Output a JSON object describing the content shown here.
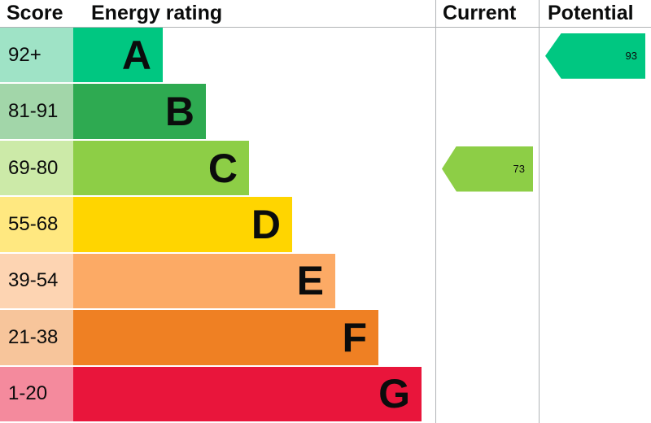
{
  "header": {
    "score_label": "Score",
    "energy_rating_label": "Energy rating",
    "current_label": "Current",
    "potential_label": "Potential"
  },
  "bands": [
    {
      "letter": "A",
      "score": "92+",
      "color": "#00c781",
      "tint": "#9fe3c6"
    },
    {
      "letter": "B",
      "score": "81-91",
      "color": "#2eaa51",
      "tint": "#a2d6a9"
    },
    {
      "letter": "C",
      "score": "69-80",
      "color": "#8dce46",
      "tint": "#cceaa8"
    },
    {
      "letter": "D",
      "score": "55-68",
      "color": "#ffd500",
      "tint": "#ffe880"
    },
    {
      "letter": "E",
      "score": "39-54",
      "color": "#fcaa65",
      "tint": "#fdd4b2"
    },
    {
      "letter": "F",
      "score": "21-38",
      "color": "#ef8023",
      "tint": "#f7c59b"
    },
    {
      "letter": "G",
      "score": "1-20",
      "color": "#e9153b",
      "tint": "#f48a9d"
    }
  ],
  "markers": {
    "current": {
      "value": "73",
      "band": "C",
      "color": "#8dce46"
    },
    "potential": {
      "value": "93",
      "band": "A",
      "color": "#00c781"
    }
  },
  "colors": {
    "grid_line": "#b1b4b6",
    "text": "#0b0c0c"
  },
  "chart_data": {
    "type": "bar",
    "title": "Energy rating",
    "categories": [
      "A",
      "B",
      "C",
      "D",
      "E",
      "F",
      "G"
    ],
    "score_ranges": [
      "92+",
      "81-91",
      "69-80",
      "55-68",
      "39-54",
      "21-38",
      "1-20"
    ],
    "columns": [
      "Score",
      "Energy rating",
      "Current",
      "Potential"
    ],
    "current": 73,
    "current_band": "C",
    "potential": 93,
    "potential_band": "A",
    "legend_position": "none",
    "grid": false
  }
}
